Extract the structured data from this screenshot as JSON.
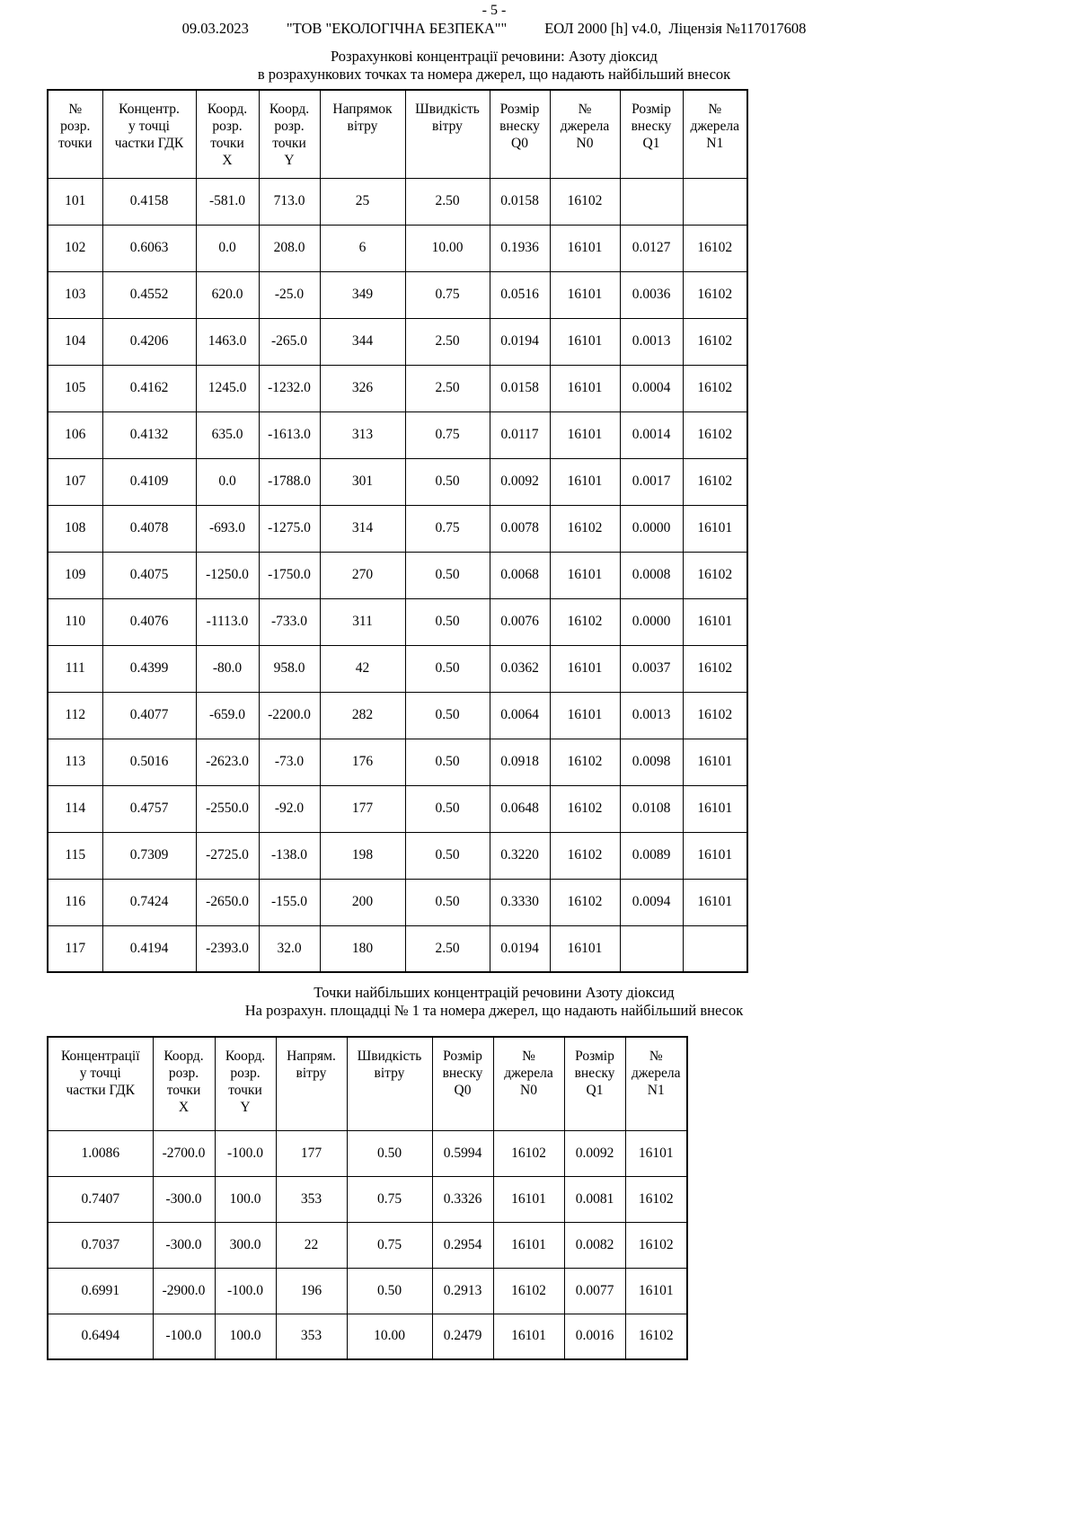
{
  "page_number": "- 5 -",
  "header": {
    "date": "09.03.2023",
    "company": "\"ТОВ \"ЕКОЛОГІЧНА БЕЗПЕКА\"\"",
    "app_info": "ЕОЛ 2000 [h] v4.0,  Ліцензія №117017608"
  },
  "section1": {
    "title_line1": "Розрахункові концентрації речовини: Азоту діоксид",
    "title_line2": "в розрахункових точках  та номера джерел, що надають найбільший внесок",
    "table": {
      "headers": [
        "№\nрозр.\nточки",
        "Концентр.\nу точці\nчастки ГДК",
        "Коорд.\nрозр.\nточки\nX",
        "Коорд.\nрозр.\nточки\nY",
        "Напрямок\nвітру",
        "Швидкість\nвітру",
        "Розмір\nвнеску\nQ0",
        "№\nджерела\nN0",
        "Розмір\nвнеску\nQ1",
        "№\nджерела\nN1"
      ],
      "rows": [
        [
          "101",
          "0.4158",
          "-581.0",
          "713.0",
          "25",
          "2.50",
          "0.0158",
          "16102",
          "",
          ""
        ],
        [
          "102",
          "0.6063",
          "0.0",
          "208.0",
          "6",
          "10.00",
          "0.1936",
          "16101",
          "0.0127",
          "16102"
        ],
        [
          "103",
          "0.4552",
          "620.0",
          "-25.0",
          "349",
          "0.75",
          "0.0516",
          "16101",
          "0.0036",
          "16102"
        ],
        [
          "104",
          "0.4206",
          "1463.0",
          "-265.0",
          "344",
          "2.50",
          "0.0194",
          "16101",
          "0.0013",
          "16102"
        ],
        [
          "105",
          "0.4162",
          "1245.0",
          "-1232.0",
          "326",
          "2.50",
          "0.0158",
          "16101",
          "0.0004",
          "16102"
        ],
        [
          "106",
          "0.4132",
          "635.0",
          "-1613.0",
          "313",
          "0.75",
          "0.0117",
          "16101",
          "0.0014",
          "16102"
        ],
        [
          "107",
          "0.4109",
          "0.0",
          "-1788.0",
          "301",
          "0.50",
          "0.0092",
          "16101",
          "0.0017",
          "16102"
        ],
        [
          "108",
          "0.4078",
          "-693.0",
          "-1275.0",
          "314",
          "0.75",
          "0.0078",
          "16102",
          "0.0000",
          "16101"
        ],
        [
          "109",
          "0.4075",
          "-1250.0",
          "-1750.0",
          "270",
          "0.50",
          "0.0068",
          "16101",
          "0.0008",
          "16102"
        ],
        [
          "110",
          "0.4076",
          "-1113.0",
          "-733.0",
          "311",
          "0.50",
          "0.0076",
          "16102",
          "0.0000",
          "16101"
        ],
        [
          "111",
          "0.4399",
          "-80.0",
          "958.0",
          "42",
          "0.50",
          "0.0362",
          "16101",
          "0.0037",
          "16102"
        ],
        [
          "112",
          "0.4077",
          "-659.0",
          "-2200.0",
          "282",
          "0.50",
          "0.0064",
          "16101",
          "0.0013",
          "16102"
        ],
        [
          "113",
          "0.5016",
          "-2623.0",
          "-73.0",
          "176",
          "0.50",
          "0.0918",
          "16102",
          "0.0098",
          "16101"
        ],
        [
          "114",
          "0.4757",
          "-2550.0",
          "-92.0",
          "177",
          "0.50",
          "0.0648",
          "16102",
          "0.0108",
          "16101"
        ],
        [
          "115",
          "0.7309",
          "-2725.0",
          "-138.0",
          "198",
          "0.50",
          "0.3220",
          "16102",
          "0.0089",
          "16101"
        ],
        [
          "116",
          "0.7424",
          "-2650.0",
          "-155.0",
          "200",
          "0.50",
          "0.3330",
          "16102",
          "0.0094",
          "16101"
        ],
        [
          "117",
          "0.4194",
          "-2393.0",
          "32.0",
          "180",
          "2.50",
          "0.0194",
          "16101",
          "",
          ""
        ]
      ]
    }
  },
  "section2": {
    "title_line1": "Точки найбільших концентрацій речовини Азоту діоксид",
    "title_line2": "На розрахун. площадці № 1 та номера джерел, що надають найбільший внесок",
    "table": {
      "headers": [
        "Концентрації\nу точці\nчастки ГДК",
        "Коорд.\nрозр.\nточки\nX",
        "Коорд.\nрозр.\nточки\nY",
        "Напрям.\nвітру",
        "Швидкість\nвітру",
        "Розмір\nвнеску\nQ0",
        "№\nджерела\nN0",
        "Розмір\nвнеску\nQ1",
        "№\nджерела\nN1"
      ],
      "rows": [
        [
          "1.0086",
          "-2700.0",
          "-100.0",
          "177",
          "0.50",
          "0.5994",
          "16102",
          "0.0092",
          "16101"
        ],
        [
          "0.7407",
          "-300.0",
          "100.0",
          "353",
          "0.75",
          "0.3326",
          "16101",
          "0.0081",
          "16102"
        ],
        [
          "0.7037",
          "-300.0",
          "300.0",
          "22",
          "0.75",
          "0.2954",
          "16101",
          "0.0082",
          "16102"
        ],
        [
          "0.6991",
          "-2900.0",
          "-100.0",
          "196",
          "0.50",
          "0.2913",
          "16102",
          "0.0077",
          "16101"
        ],
        [
          "0.6494",
          "-100.0",
          "100.0",
          "353",
          "10.00",
          "0.2479",
          "16101",
          "0.0016",
          "16102"
        ]
      ]
    }
  }
}
